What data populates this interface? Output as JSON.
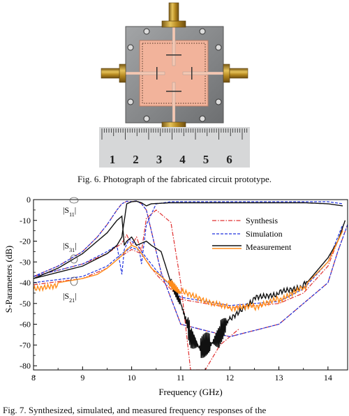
{
  "figure6": {
    "caption": "Fig. 6.  Photograph of the fabricated circuit prototype.",
    "ruler_numbers": [
      "1",
      "2",
      "3",
      "4",
      "5",
      "6"
    ]
  },
  "figure7": {
    "caption_fragment": "Fig. 7.  Synthesized, simulated, and measured frequency responses of the"
  },
  "chart_data": {
    "type": "line",
    "xlabel": "Frequency (GHz)",
    "ylabel": "S-Parameters (dB)",
    "xlim": [
      8,
      14.4
    ],
    "ylim": [
      -82,
      0
    ],
    "xticks": [
      8,
      9,
      10,
      11,
      12,
      13,
      14
    ],
    "yticks": [
      0,
      -10,
      -20,
      -30,
      -40,
      -50,
      -60,
      -70,
      -80
    ],
    "grid": false,
    "legend_position": "upper-right",
    "annotations": [
      "|S11|",
      "|S31|",
      "|S21|"
    ],
    "series": [
      {
        "name": "Synthesis",
        "style": "dash-dot",
        "color": "#e03030",
        "curves": [
          {
            "label": "S11",
            "x": [
              8,
              8.5,
              9,
              9.3,
              9.5,
              9.7,
              9.8,
              9.9,
              10.0,
              10.1,
              10.2,
              10.3,
              10.4,
              10.6,
              11,
              12,
              13,
              14,
              14.2,
              14.4
            ],
            "y": [
              -37,
              -32,
              -25,
              -18,
              -12,
              -5,
              -2,
              -0.8,
              -1,
              -0.6,
              -2,
              -5,
              -15,
              -35,
              -60,
              -66,
              -60,
              -40,
              -25,
              -12
            ]
          },
          {
            "label": "S31",
            "x": [
              8,
              9,
              9.5,
              9.8,
              9.9,
              10.0,
              10.1,
              10.2,
              10.3,
              10.5,
              10.8,
              11,
              11.2,
              11.5,
              11.8,
              12.2
            ],
            "y": [
              -37,
              -31,
              -26,
              -21,
              -17,
              -22,
              -18,
              -25,
              -9,
              -5,
              -11,
              -40,
              -82,
              -82,
              -70,
              -62
            ]
          },
          {
            "label": "S21",
            "x": [
              8,
              9,
              9.5,
              9.8,
              10.0,
              10.2,
              10.5,
              11,
              12,
              13,
              13.5,
              14,
              14.3
            ],
            "y": [
              -41,
              -38,
              -33,
              -27,
              -24,
              -26,
              -36,
              -48,
              -52,
              -50,
              -45,
              -32,
              -14
            ]
          }
        ]
      },
      {
        "name": "Simulation",
        "style": "dashed",
        "color": "#2233dd",
        "curves": [
          {
            "label": "S11",
            "x": [
              8,
              8.5,
              9,
              9.3,
              9.5,
              9.7,
              9.8,
              9.9,
              10.0,
              10.1,
              10.2,
              10.3,
              10.4,
              10.6,
              11,
              12,
              13,
              14,
              14.2,
              14.4
            ],
            "y": [
              -37,
              -32,
              -25,
              -18,
              -12,
              -5,
              -2,
              -0.8,
              -1,
              -0.6,
              -2,
              -5,
              -15,
              -35,
              -60,
              -66,
              -60,
              -40,
              -25,
              -12
            ]
          },
          {
            "label": "S31",
            "x": [
              8,
              9,
              9.5,
              9.7,
              9.8,
              9.85,
              9.95,
              10.05,
              10.15,
              10.2,
              10.3,
              10.5,
              10.8,
              11,
              11.3,
              11.6,
              12,
              12.5,
              13,
              13.5,
              14,
              14.3
            ],
            "y": [
              -37,
              -31,
              -25,
              -22,
              -36,
              -24,
              -19,
              -21,
              -23,
              -31,
              -12,
              -2,
              -1,
              -1,
              -1,
              -1,
              -1,
              -1,
              -1,
              -1,
              -1,
              -2
            ]
          },
          {
            "label": "S21",
            "x": [
              8,
              9,
              9.5,
              9.8,
              10.0,
              10.2,
              10.5,
              11,
              12,
              13,
              13.5,
              14,
              14.3
            ],
            "y": [
              -40,
              -37,
              -32,
              -26,
              -23,
              -25,
              -34,
              -47,
              -51,
              -49,
              -43,
              -30,
              -12
            ]
          }
        ]
      },
      {
        "name": "Measurement",
        "style": "solid",
        "color": "#111111",
        "curves": [
          {
            "label": "S11",
            "x": [
              8,
              8.5,
              9,
              9.3,
              9.5,
              9.7,
              9.8,
              9.85,
              9.9,
              10.0,
              10.1,
              10.3,
              10.4,
              10.6,
              10.8,
              11,
              11.2,
              11.4,
              11.6,
              11.8,
              12,
              12.5,
              13,
              13.5,
              14,
              14.2,
              14.35
            ],
            "y": [
              -38,
              -33,
              -26,
              -20,
              -16,
              -10,
              -8,
              -22,
              -20,
              -18,
              -22,
              -20,
              -22,
              -25,
              -40,
              -50,
              -65,
              -72,
              -70,
              -65,
              -57,
              -47,
              -45,
              -42,
              -28,
              -20,
              -10
            ]
          },
          {
            "label": "S31",
            "x": [
              8,
              9,
              9.5,
              9.7,
              9.8,
              9.9,
              10.0,
              10.1,
              10.2,
              10.3,
              10.4,
              10.8,
              11,
              11.5,
              12,
              12.5,
              13,
              13.5,
              14,
              14.3
            ],
            "y": [
              -38,
              -32,
              -26,
              -22,
              -18,
              -2,
              -1,
              -0.8,
              -1.5,
              -3,
              -2,
              -1.5,
              -1.5,
              -1.5,
              -1.5,
              -1.5,
              -1.5,
              -1.5,
              -2,
              -3
            ]
          }
        ]
      },
      {
        "name": "Measurement",
        "style": "solid",
        "color": "#ff8c1a",
        "curves": [
          {
            "label": "S21",
            "x": [
              8,
              8.5,
              9,
              9.3,
              9.5,
              9.7,
              9.8,
              9.9,
              10.0,
              10.1,
              10.2,
              10.4,
              10.6,
              10.8,
              11,
              11.5,
              12,
              12.5,
              13,
              13.5,
              14,
              14.3
            ],
            "y": [
              -42,
              -40,
              -38,
              -36,
              -33,
              -29,
              -27,
              -24,
              -22,
              -23,
              -26,
              -33,
              -37,
              -41,
              -45,
              -50,
              -53,
              -52,
              -48,
              -42,
              -30,
              -15
            ]
          }
        ]
      }
    ]
  },
  "colors": {
    "synthesis": "#e03030",
    "simulation": "#2233dd",
    "measurement_black": "#111111",
    "measurement_orange": "#ff8c1a",
    "board_copper": "#f2b39b",
    "board_metal": "#8a8c8e",
    "connector_gold": "#c8a032",
    "ruler": "#d6d7d8"
  }
}
